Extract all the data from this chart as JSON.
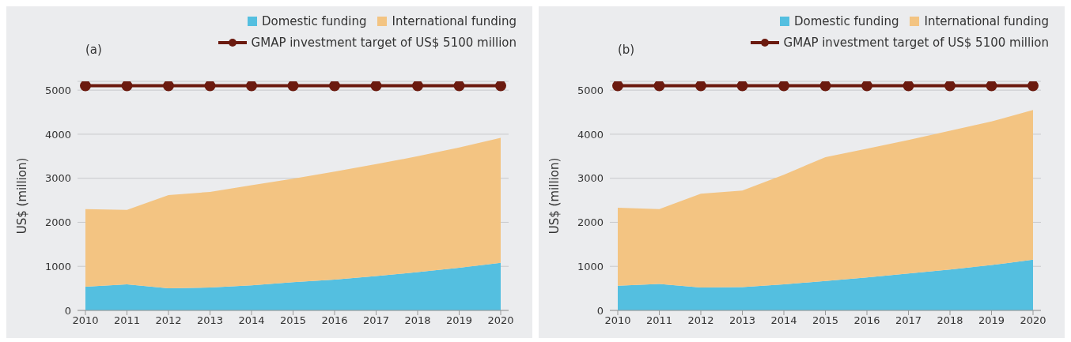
{
  "chart_data": [
    {
      "type": "area",
      "title": "(a)",
      "ylabel": "US$ (million)",
      "stacked": true,
      "categories": [
        "2010",
        "2011",
        "2012",
        "2013",
        "2014",
        "2015",
        "2016",
        "2017",
        "2018",
        "2019",
        "2020"
      ],
      "series": [
        {
          "name": "Domestic funding",
          "color": "#54bfe0",
          "values": [
            540,
            590,
            500,
            520,
            570,
            640,
            700,
            780,
            870,
            970,
            1080
          ]
        },
        {
          "name": "International funding",
          "color": "#f3c482",
          "values": [
            1760,
            1690,
            2120,
            2170,
            2270,
            2350,
            2450,
            2540,
            2630,
            2730,
            2840
          ]
        },
        {
          "name": "GMAP investment target of US$ 5100 million",
          "type": "line",
          "marker": "circle",
          "color": "#6b1a0f",
          "values": [
            5100,
            5100,
            5100,
            5100,
            5100,
            5100,
            5100,
            5100,
            5100,
            5100,
            5100
          ]
        }
      ],
      "ylim": [
        0,
        5200
      ],
      "yticks": [
        0,
        1000,
        2000,
        3000,
        4000,
        5000
      ],
      "grid": "y",
      "legend": "top right"
    },
    {
      "type": "area",
      "title": "(b)",
      "ylabel": "US$ (million)",
      "stacked": true,
      "categories": [
        "2010",
        "2011",
        "2012",
        "2013",
        "2014",
        "2015",
        "2016",
        "2017",
        "2018",
        "2019",
        "2020"
      ],
      "series": [
        {
          "name": "Domestic funding",
          "color": "#54bfe0",
          "values": [
            560,
            600,
            520,
            530,
            590,
            670,
            750,
            840,
            930,
            1030,
            1150
          ]
        },
        {
          "name": "International funding",
          "color": "#f3c482",
          "values": [
            1770,
            1700,
            2130,
            2190,
            2490,
            2810,
            2920,
            3030,
            3150,
            3260,
            3400
          ]
        },
        {
          "name": "GMAP investment target of US$ 5100 million",
          "type": "line",
          "marker": "circle",
          "color": "#6b1a0f",
          "values": [
            5100,
            5100,
            5100,
            5100,
            5100,
            5100,
            5100,
            5100,
            5100,
            5100,
            5100
          ]
        }
      ],
      "ylim": [
        0,
        5200
      ],
      "yticks": [
        0,
        1000,
        2000,
        3000,
        4000,
        5000
      ],
      "grid": "y",
      "legend": "top right"
    }
  ]
}
